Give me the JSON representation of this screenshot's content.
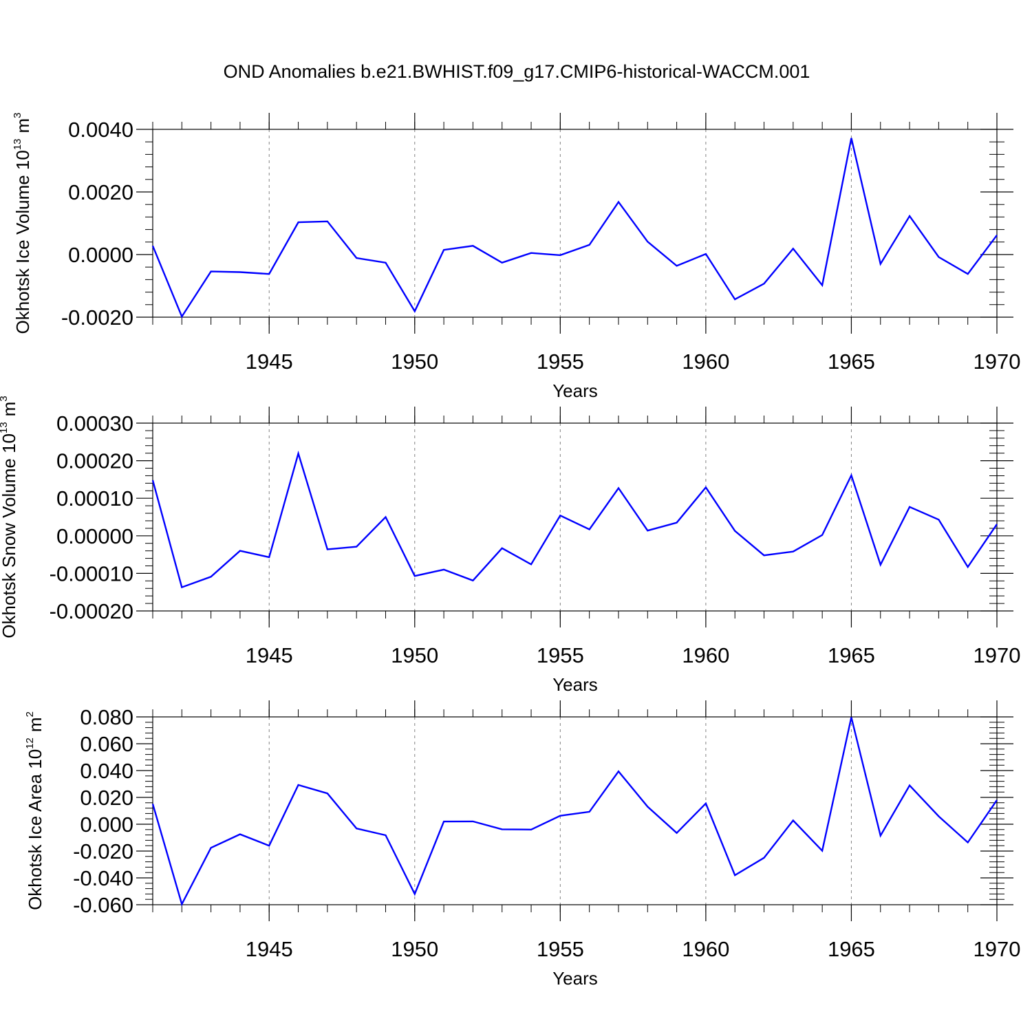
{
  "title": "OND Anomalies b.e21.BWHIST.f09_g17.CMIP6-historical-WACCM.001",
  "colors": {
    "series": "#0000ff",
    "axis": "#000000",
    "grid": "#808080",
    "background": "#ffffff"
  },
  "chart_data": [
    {
      "type": "line",
      "ylabel": {
        "text": "Okhotsk Ice Volume 10",
        "exponent": "13",
        "unit": "m",
        "unit_exponent": "3"
      },
      "xlabel": "Years",
      "xlim": [
        1941,
        1970
      ],
      "ylim": [
        -0.002,
        0.004
      ],
      "yticks": [
        -0.002,
        0.0,
        0.002,
        0.004
      ],
      "ytick_labels": [
        "-0.0020",
        "0.0000",
        "0.0020",
        "0.0040"
      ],
      "xticks": [
        1945,
        1950,
        1955,
        1960,
        1965,
        1970
      ],
      "xtick_labels": [
        "1945",
        "1950",
        "1955",
        "1960",
        "1965",
        "1970"
      ],
      "x": [
        1941,
        1942,
        1943,
        1944,
        1945,
        1946,
        1947,
        1948,
        1949,
        1950,
        1951,
        1952,
        1953,
        1954,
        1955,
        1956,
        1957,
        1958,
        1959,
        1960,
        1961,
        1962,
        1963,
        1964,
        1965,
        1966,
        1967,
        1968,
        1969,
        1970
      ],
      "values": [
        0.00028,
        -0.00198,
        -0.00054,
        -0.00056,
        -0.00062,
        0.00103,
        0.00106,
        -0.00011,
        -0.00026,
        -0.00181,
        0.00015,
        0.00028,
        -0.00026,
        5e-05,
        -2e-05,
        0.00031,
        0.00168,
        0.00041,
        -0.00036,
        2e-05,
        -0.00143,
        -0.00093,
        0.00019,
        -0.00098,
        0.00372,
        -0.0003,
        0.00123,
        -8e-05,
        -0.00062,
        0.00062
      ]
    },
    {
      "type": "line",
      "ylabel": {
        "text": "Okhotsk Snow Volume 10",
        "exponent": "13",
        "unit": "m",
        "unit_exponent": "3"
      },
      "xlabel": "Years",
      "xlim": [
        1941,
        1970
      ],
      "ylim": [
        -0.0002,
        0.0003
      ],
      "yticks": [
        -0.0002,
        -0.0001,
        0.0,
        0.0001,
        0.0002,
        0.0003
      ],
      "ytick_labels": [
        "-0.00020",
        "-0.00010",
        "0.00000",
        "0.00010",
        "0.00020",
        "0.00030"
      ],
      "xticks": [
        1945,
        1950,
        1955,
        1960,
        1965,
        1970
      ],
      "xtick_labels": [
        "1945",
        "1950",
        "1955",
        "1960",
        "1965",
        "1970"
      ],
      "x": [
        1941,
        1942,
        1943,
        1944,
        1945,
        1946,
        1947,
        1948,
        1949,
        1950,
        1951,
        1952,
        1953,
        1954,
        1955,
        1956,
        1957,
        1958,
        1959,
        1960,
        1961,
        1962,
        1963,
        1964,
        1965,
        1966,
        1967,
        1968,
        1969,
        1970
      ],
      "values": [
        0.000148,
        -0.000137,
        -0.000109,
        -4e-05,
        -5.7e-05,
        0.000219,
        -3.6e-05,
        -2.9e-05,
        5e-05,
        -0.000107,
        -9e-05,
        -0.000119,
        -3.3e-05,
        -7.6e-05,
        5.4e-05,
        1.7e-05,
        0.000127,
        1.4e-05,
        3.5e-05,
        0.000129,
        1.3e-05,
        -5.2e-05,
        -4.2e-05,
        2e-06,
        0.000161,
        -7.7e-05,
        7.7e-05,
        4.3e-05,
        -8.3e-05,
        3.1e-05
      ]
    },
    {
      "type": "line",
      "ylabel": {
        "text": "Okhotsk Ice Area 10",
        "exponent": "12",
        "unit": "m",
        "unit_exponent": "2"
      },
      "xlabel": "Years",
      "xlim": [
        1941,
        1970
      ],
      "ylim": [
        -0.06,
        0.08
      ],
      "yticks": [
        -0.06,
        -0.04,
        -0.02,
        0.0,
        0.02,
        0.04,
        0.06,
        0.08
      ],
      "ytick_labels": [
        "-0.060",
        "-0.040",
        "-0.020",
        "0.000",
        "0.020",
        "0.040",
        "0.060",
        "0.080"
      ],
      "xticks": [
        1945,
        1950,
        1955,
        1960,
        1965,
        1970
      ],
      "xtick_labels": [
        "1945",
        "1950",
        "1955",
        "1960",
        "1965",
        "1970"
      ],
      "x": [
        1941,
        1942,
        1943,
        1944,
        1945,
        1946,
        1947,
        1948,
        1949,
        1950,
        1951,
        1952,
        1953,
        1954,
        1955,
        1956,
        1957,
        1958,
        1959,
        1960,
        1961,
        1962,
        1963,
        1964,
        1965,
        1966,
        1967,
        1968,
        1969,
        1970
      ],
      "values": [
        0.0152,
        -0.0596,
        -0.0176,
        -0.0075,
        -0.016,
        0.0293,
        0.023,
        -0.0032,
        -0.0082,
        -0.052,
        0.002,
        0.0021,
        -0.0038,
        -0.004,
        0.0063,
        0.0093,
        0.0394,
        0.0131,
        -0.0065,
        0.0155,
        -0.038,
        -0.025,
        0.0028,
        -0.0198,
        0.0797,
        -0.0085,
        0.0289,
        0.0059,
        -0.0136,
        0.018
      ]
    }
  ]
}
